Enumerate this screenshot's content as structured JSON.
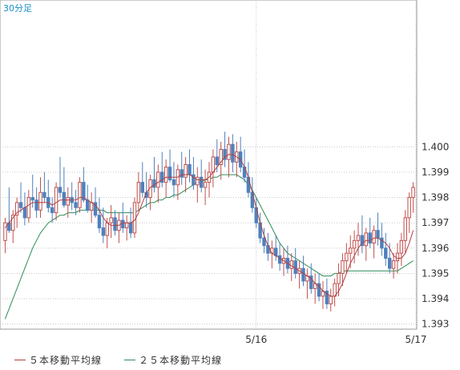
{
  "period_label": "30分足",
  "legend": {
    "ma5_label": "５本移動平均線",
    "ma25_label": "２５本移動平均線"
  },
  "colors": {
    "up": "#c0504d",
    "down": "#4f81bd",
    "ma5": "#b04040",
    "ma25": "#2e8b57",
    "grid": "#c8c8c8",
    "period": "#1a90c8"
  },
  "chart_data": {
    "type": "candlestick",
    "y_ticks": [
      "1.393",
      "1.394",
      "1.395",
      "1.396",
      "1.397",
      "1.398",
      "1.399",
      "1.400"
    ],
    "x_ticks": [
      {
        "label": "5/16",
        "index": 64
      },
      {
        "label": "5/17",
        "index": 127
      }
    ],
    "ylim": [
      1.3928,
      1.4058
    ],
    "candles": [
      [
        1.3963,
        1.3972,
        1.3958,
        1.397
      ],
      [
        1.397,
        1.3984,
        1.3966,
        1.3967
      ],
      [
        1.3967,
        1.3975,
        1.3962,
        1.3973
      ],
      [
        1.3973,
        1.398,
        1.3968,
        1.3978
      ],
      [
        1.3978,
        1.3986,
        1.3974,
        1.3976
      ],
      [
        1.3976,
        1.3982,
        1.3969,
        1.3972
      ],
      [
        1.3972,
        1.3983,
        1.397,
        1.398
      ],
      [
        1.398,
        1.3989,
        1.3976,
        1.3979
      ],
      [
        1.3979,
        1.3984,
        1.3972,
        1.3975
      ],
      [
        1.3975,
        1.3988,
        1.3972,
        1.3982
      ],
      [
        1.3982,
        1.399,
        1.3978,
        1.398
      ],
      [
        1.398,
        1.3987,
        1.3974,
        1.3976
      ],
      [
        1.3976,
        1.398,
        1.397,
        1.3974
      ],
      [
        1.3974,
        1.3986,
        1.3971,
        1.3984
      ],
      [
        1.3984,
        1.3996,
        1.398,
        1.3982
      ],
      [
        1.3982,
        1.3992,
        1.3976,
        1.3977
      ],
      [
        1.3977,
        1.3984,
        1.3972,
        1.398
      ],
      [
        1.398,
        1.3986,
        1.3975,
        1.3978
      ],
      [
        1.3978,
        1.3983,
        1.3973,
        1.3976
      ],
      [
        1.3976,
        1.3988,
        1.3974,
        1.3986
      ],
      [
        1.3986,
        1.3992,
        1.3978,
        1.3979
      ],
      [
        1.3979,
        1.3985,
        1.3974,
        1.3975
      ],
      [
        1.3975,
        1.3982,
        1.397,
        1.3978
      ],
      [
        1.3978,
        1.3984,
        1.3972,
        1.3973
      ],
      [
        1.3973,
        1.398,
        1.3966,
        1.3968
      ],
      [
        1.3968,
        1.3976,
        1.3962,
        1.3965
      ],
      [
        1.3965,
        1.3972,
        1.396,
        1.397
      ],
      [
        1.397,
        1.3977,
        1.3964,
        1.3972
      ],
      [
        1.3972,
        1.3975,
        1.3965,
        1.3967
      ],
      [
        1.3967,
        1.3974,
        1.3962,
        1.3971
      ],
      [
        1.3971,
        1.3978,
        1.3966,
        1.3968
      ],
      [
        1.3968,
        1.3973,
        1.3963,
        1.397
      ],
      [
        1.397,
        1.3976,
        1.3964,
        1.3966
      ],
      [
        1.3966,
        1.398,
        1.3964,
        1.3978
      ],
      [
        1.3978,
        1.399,
        1.3975,
        1.3986
      ],
      [
        1.3986,
        1.3994,
        1.398,
        1.3982
      ],
      [
        1.3982,
        1.399,
        1.3976,
        1.398
      ],
      [
        1.398,
        1.3989,
        1.3975,
        1.3987
      ],
      [
        1.3987,
        1.3996,
        1.3982,
        1.3984
      ],
      [
        1.3984,
        1.3993,
        1.3978,
        1.399
      ],
      [
        1.399,
        1.3998,
        1.3984,
        1.3986
      ],
      [
        1.3986,
        1.3995,
        1.398,
        1.3992
      ],
      [
        1.3992,
        1.3999,
        1.3986,
        1.3987
      ],
      [
        1.3987,
        1.3994,
        1.398,
        1.3985
      ],
      [
        1.3985,
        1.3993,
        1.3979,
        1.3991
      ],
      [
        1.3991,
        1.3998,
        1.3985,
        1.3988
      ],
      [
        1.3988,
        1.3996,
        1.3982,
        1.3993
      ],
      [
        1.3993,
        1.3999,
        1.3986,
        1.3989
      ],
      [
        1.3989,
        1.3996,
        1.3983,
        1.3985
      ],
      [
        1.3985,
        1.3992,
        1.3978,
        1.3988
      ],
      [
        1.3988,
        1.3995,
        1.3982,
        1.3984
      ],
      [
        1.3984,
        1.3991,
        1.3977,
        1.3986
      ],
      [
        1.3986,
        1.3994,
        1.398,
        1.399
      ],
      [
        1.399,
        1.3999,
        1.3984,
        1.3996
      ],
      [
        1.3996,
        1.4003,
        1.399,
        1.3993
      ],
      [
        1.3993,
        1.4002,
        1.3987,
        1.3999
      ],
      [
        1.3999,
        1.4006,
        1.3992,
        1.3995
      ],
      [
        1.3995,
        1.4004,
        1.3988,
        1.4001
      ],
      [
        1.4001,
        1.4005,
        1.399,
        1.3994
      ],
      [
        1.3994,
        1.4002,
        1.3988,
        1.3998
      ],
      [
        1.3998,
        1.4004,
        1.399,
        1.3992
      ],
      [
        1.3992,
        1.3999,
        1.3986,
        1.3988
      ],
      [
        1.3988,
        1.3994,
        1.398,
        1.3982
      ],
      [
        1.3982,
        1.3988,
        1.3974,
        1.3976
      ],
      [
        1.3976,
        1.398,
        1.3968,
        1.397
      ],
      [
        1.397,
        1.3974,
        1.3962,
        1.3964
      ],
      [
        1.3964,
        1.3968,
        1.3958,
        1.3961
      ],
      [
        1.3961,
        1.3966,
        1.3955,
        1.3958
      ],
      [
        1.3958,
        1.3963,
        1.3952,
        1.396
      ],
      [
        1.396,
        1.3965,
        1.3955,
        1.3957
      ],
      [
        1.3957,
        1.3962,
        1.3951,
        1.3954
      ],
      [
        1.3954,
        1.396,
        1.3949,
        1.3956
      ],
      [
        1.3956,
        1.3961,
        1.395,
        1.3952
      ],
      [
        1.3952,
        1.3958,
        1.3947,
        1.3955
      ],
      [
        1.3955,
        1.396,
        1.3948,
        1.395
      ],
      [
        1.395,
        1.3955,
        1.3944,
        1.3952
      ],
      [
        1.3952,
        1.3957,
        1.3945,
        1.3947
      ],
      [
        1.3947,
        1.3952,
        1.394,
        1.3949
      ],
      [
        1.3949,
        1.3954,
        1.3942,
        1.3944
      ],
      [
        1.3944,
        1.395,
        1.3938,
        1.3946
      ],
      [
        1.3946,
        1.395,
        1.3939,
        1.3941
      ],
      [
        1.3941,
        1.3947,
        1.3936,
        1.3943
      ],
      [
        1.3943,
        1.3948,
        1.3936,
        1.3938
      ],
      [
        1.3938,
        1.3944,
        1.3935,
        1.3941
      ],
      [
        1.3941,
        1.3948,
        1.3937,
        1.3946
      ],
      [
        1.3946,
        1.3954,
        1.3941,
        1.395
      ],
      [
        1.395,
        1.3958,
        1.3945,
        1.3955
      ],
      [
        1.3955,
        1.3962,
        1.395,
        1.3958
      ],
      [
        1.3958,
        1.3965,
        1.3952,
        1.396
      ],
      [
        1.396,
        1.3967,
        1.3954,
        1.3963
      ],
      [
        1.3963,
        1.397,
        1.3957,
        1.3965
      ],
      [
        1.3965,
        1.3973,
        1.3958,
        1.3961
      ],
      [
        1.3961,
        1.3968,
        1.3955,
        1.3966
      ],
      [
        1.3966,
        1.3972,
        1.396,
        1.3962
      ],
      [
        1.3962,
        1.3969,
        1.3956,
        1.3967
      ],
      [
        1.3967,
        1.3974,
        1.3961,
        1.3964
      ],
      [
        1.3964,
        1.397,
        1.3957,
        1.396
      ],
      [
        1.396,
        1.3966,
        1.3953,
        1.3956
      ],
      [
        1.3956,
        1.3962,
        1.395,
        1.3952
      ],
      [
        1.3952,
        1.3958,
        1.3948,
        1.3955
      ],
      [
        1.3955,
        1.3962,
        1.395,
        1.3958
      ],
      [
        1.3958,
        1.3966,
        1.3953,
        1.3963
      ],
      [
        1.3963,
        1.3975,
        1.3958,
        1.3972
      ],
      [
        1.3972,
        1.3982,
        1.3966,
        1.398
      ],
      [
        1.398,
        1.3986,
        1.3974,
        1.3984
      ]
    ],
    "ma5": [
      1.3968,
      1.397,
      1.3972,
      1.3974,
      1.3975,
      1.3976,
      1.3977,
      1.3978,
      1.3978,
      1.3978,
      1.3978,
      1.3978,
      1.3977,
      1.3978,
      1.3979,
      1.3979,
      1.3979,
      1.3979,
      1.3979,
      1.398,
      1.398,
      1.3979,
      1.3978,
      1.3977,
      1.3975,
      1.3972,
      1.397,
      1.3969,
      1.3969,
      1.3969,
      1.397,
      1.397,
      1.397,
      1.3971,
      1.3974,
      1.3978,
      1.3982,
      1.3984,
      1.3985,
      1.3986,
      1.3987,
      1.3988,
      1.3988,
      1.3988,
      1.3988,
      1.3989,
      1.3989,
      1.3989,
      1.3988,
      1.3987,
      1.3987,
      1.3987,
      1.3988,
      1.399,
      1.3992,
      1.3994,
      1.3996,
      1.3997,
      1.3997,
      1.3996,
      1.3995,
      1.3992,
      1.3988,
      1.3982,
      1.3976,
      1.397,
      1.3965,
      1.3961,
      1.3958,
      1.3957,
      1.3956,
      1.3955,
      1.3954,
      1.3953,
      1.3952,
      1.3951,
      1.395,
      1.3949,
      1.3948,
      1.3946,
      1.3945,
      1.3943,
      1.3942,
      1.3941,
      1.3941,
      1.3943,
      1.3946,
      1.395,
      1.3954,
      1.3957,
      1.396,
      1.3962,
      1.3963,
      1.3963,
      1.3964,
      1.3964,
      1.3963,
      1.3962,
      1.396,
      1.3957,
      1.3956,
      1.3956,
      1.3958,
      1.3962,
      1.3967
    ],
    "ma25": [
      1.3932,
      1.3936,
      1.394,
      1.3944,
      1.3948,
      1.3952,
      1.3956,
      1.396,
      1.3963,
      1.3966,
      1.3968,
      1.397,
      1.3971,
      1.3972,
      1.3973,
      1.3973,
      1.3974,
      1.3974,
      1.3974,
      1.3975,
      1.3975,
      1.3975,
      1.3975,
      1.3975,
      1.3975,
      1.3975,
      1.3974,
      1.3974,
      1.3974,
      1.3974,
      1.3974,
      1.3974,
      1.3974,
      1.3974,
      1.3975,
      1.3976,
      1.3977,
      1.3978,
      1.3978,
      1.3979,
      1.3979,
      1.398,
      1.398,
      1.3981,
      1.3981,
      1.3982,
      1.3983,
      1.3984,
      1.3985,
      1.3986,
      1.3986,
      1.3987,
      1.3987,
      1.3988,
      1.3988,
      1.3989,
      1.3989,
      1.3989,
      1.3989,
      1.3989,
      1.3988,
      1.3987,
      1.3985,
      1.3983,
      1.398,
      1.3977,
      1.3974,
      1.3971,
      1.3968,
      1.3965,
      1.3962,
      1.396,
      1.3958,
      1.3957,
      1.3956,
      1.3955,
      1.3954,
      1.3953,
      1.3952,
      1.3951,
      1.395,
      1.3949,
      1.3949,
      1.3949,
      1.395,
      1.395,
      1.3951,
      1.3951,
      1.3951,
      1.3951,
      1.3951,
      1.3951,
      1.3951,
      1.3951,
      1.3951,
      1.3951,
      1.3951,
      1.3951,
      1.3951,
      1.3951,
      1.3951,
      1.3952,
      1.3953,
      1.3954,
      1.3955
    ]
  }
}
